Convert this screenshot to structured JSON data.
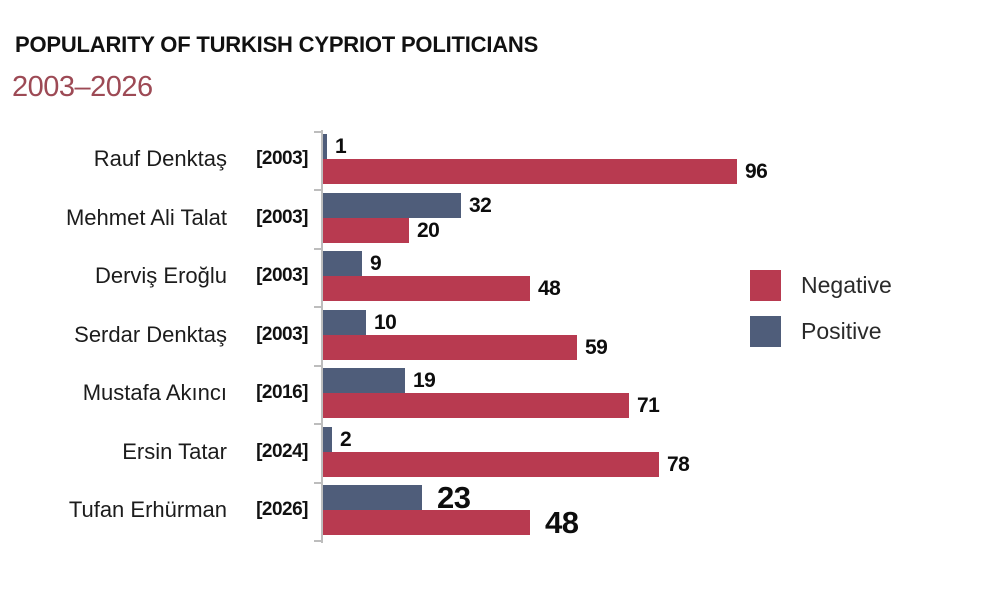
{
  "title": "POPULARITY OF TURKISH CYPRIOT POLITICIANS",
  "subtitle": "2003–2026",
  "colors": {
    "negative": "#b83a50",
    "positive": "#4f5d7a",
    "subtitle_text": "#9d4a55",
    "title_text": "#111111",
    "axis": "#bdbdbd",
    "background": "#ffffff"
  },
  "legend": {
    "position": "right",
    "items": [
      {
        "label": "Negative",
        "color": "#b83a50"
      },
      {
        "label": "Positive",
        "color": "#4f5d7a"
      }
    ]
  },
  "chart_data": {
    "type": "bar",
    "orientation": "horizontal",
    "title": "POPULARITY OF TURKISH CYPRIOT POLITICIANS",
    "subtitle": "2003–2026",
    "categories": [
      "Rauf Denktaş",
      "Mehmet Ali Talat",
      "Derviş Eroğlu",
      "Serdar Denktaş",
      "Mustafa Akıncı",
      "Ersin Tatar",
      "Tufan Erhürman"
    ],
    "year_labels": [
      "[2003]",
      "[2003]",
      "[2003]",
      "[2003]",
      "[2016]",
      "[2024]",
      "[2026]"
    ],
    "series": [
      {
        "name": "Positive",
        "color": "#4f5d7a",
        "values": [
          1,
          32,
          9,
          10,
          19,
          2,
          23
        ]
      },
      {
        "name": "Negative",
        "color": "#b83a50",
        "values": [
          96,
          20,
          48,
          59,
          71,
          78,
          48
        ]
      }
    ],
    "xlim": [
      0,
      100
    ],
    "grid": false,
    "value_labels_shown": true,
    "bar_order_per_group": [
      "Positive",
      "Negative"
    ]
  }
}
